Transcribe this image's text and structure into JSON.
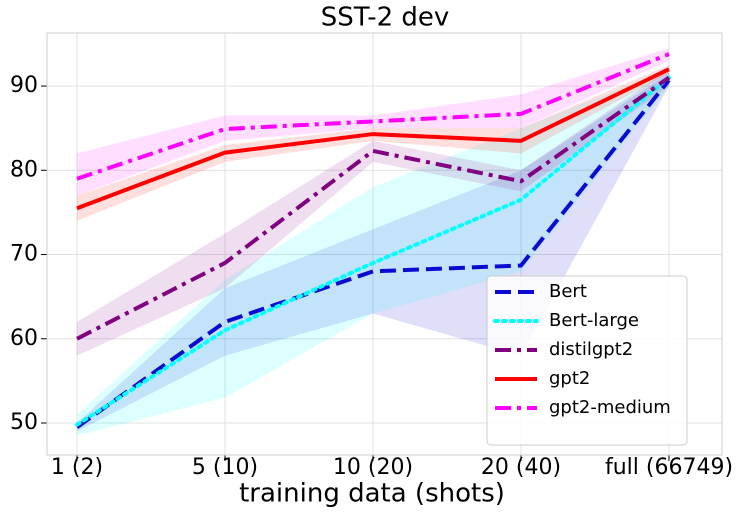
{
  "chart_data": {
    "type": "line",
    "title": "SST-2 dev",
    "x_label": "training data (shots)",
    "categories": [
      "1 (2)",
      "5 (10)",
      "10 (20)",
      "20 (40)",
      "full (66749)"
    ],
    "ylim": [
      46.2,
      96.3
    ],
    "yticks": [
      50,
      60,
      70,
      80,
      90
    ],
    "grid": true,
    "legend": "lower right",
    "series": [
      {
        "name": "Bert",
        "color": "#0a0ad2",
        "dash": "dashed",
        "values": [
          49.5,
          62,
          68,
          68.7,
          90.7
        ],
        "lower": [
          49,
          58,
          63,
          58,
          90
        ],
        "upper": [
          50,
          66,
          73,
          80,
          91.5
        ]
      },
      {
        "name": "Bert-large",
        "color": "#00ffff",
        "dash": "dotted",
        "values": [
          49.8,
          61,
          69,
          76.5,
          91
        ],
        "lower": [
          48.5,
          53,
          63,
          68,
          90
        ],
        "upper": [
          51,
          67,
          78,
          85,
          92
        ]
      },
      {
        "name": "distilgpt2",
        "color": "#800080",
        "dash": "dashdot",
        "values": [
          60,
          69,
          82.3,
          78.7,
          91
        ],
        "lower": [
          58,
          66,
          81,
          77.5,
          90
        ],
        "upper": [
          62,
          72.5,
          83.5,
          80,
          92
        ]
      },
      {
        "name": "gpt2",
        "color": "#ff0000",
        "dash": "solid",
        "values": [
          75.5,
          82.1,
          84.3,
          83.5,
          92
        ],
        "lower": [
          74,
          81,
          83.5,
          82,
          91.5
        ],
        "upper": [
          77,
          83,
          85,
          85,
          92.5
        ]
      },
      {
        "name": "gpt2-medium",
        "color": "#ff00ff",
        "dash": "dashdot",
        "values": [
          79,
          84.9,
          85.8,
          86.7,
          93.8
        ],
        "lower": [
          77,
          83.5,
          85,
          85,
          93
        ],
        "upper": [
          82,
          86.5,
          86.5,
          89,
          94.5
        ]
      }
    ]
  }
}
